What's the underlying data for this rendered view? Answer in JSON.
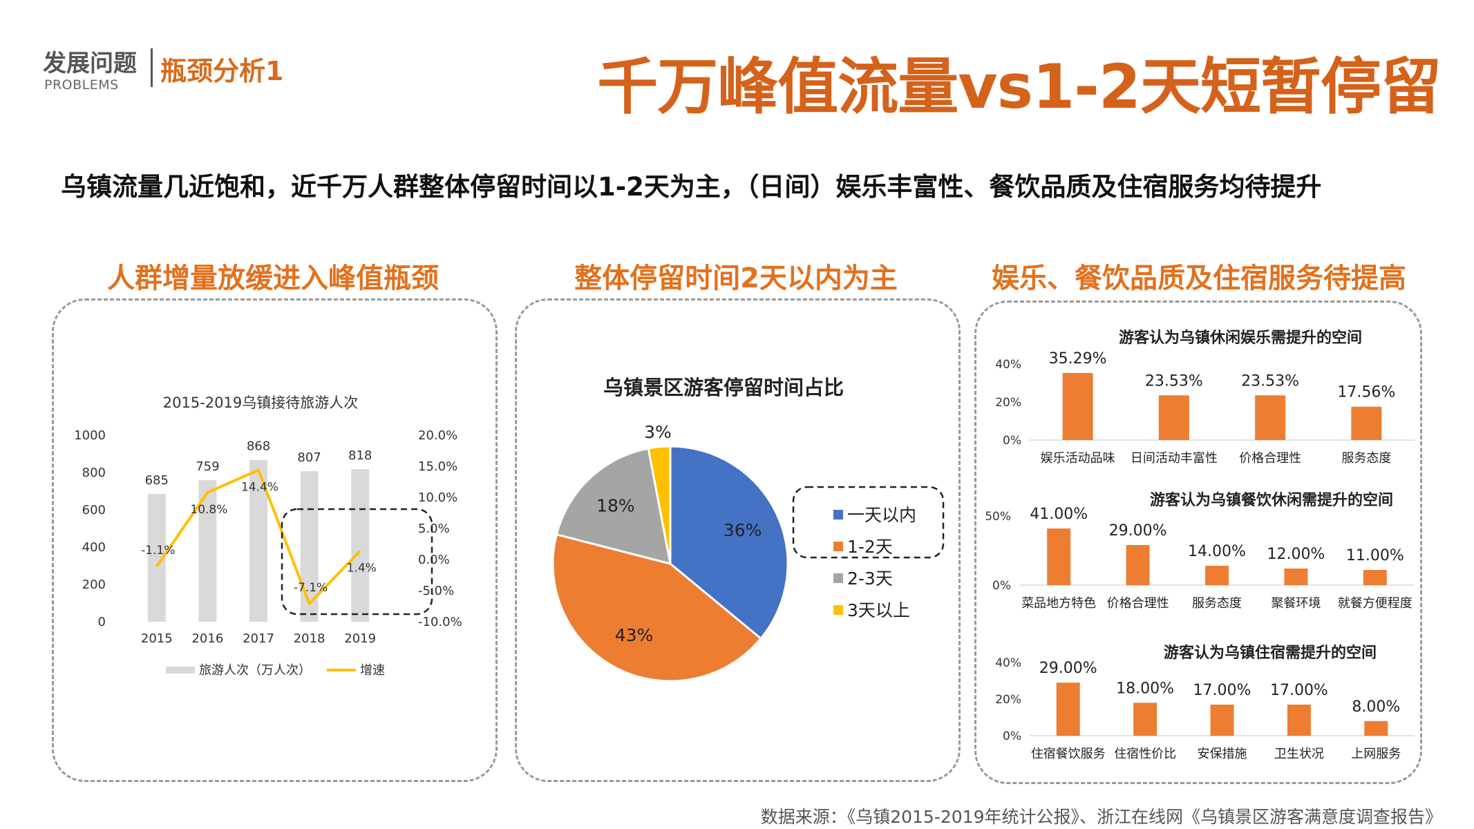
{
  "header": {
    "brand": "发展问题",
    "brand_en": "PROBLEMS",
    "section": "瓶颈分析1",
    "title": "千万峰值流量vs1-2天短暂停留"
  },
  "headline": "乌镇流量几近饱和，近千万人群整体停留时间以1-2天为主，（日间）娱乐丰富性、餐饮品质及住宿服务均待提升",
  "sections": [
    {
      "title": "人群增量放缓进入峰值瓶颈"
    },
    {
      "title": "整体停留时间2天以内为主"
    },
    {
      "title": "娱乐、餐饮品质及住宿服务待提高"
    }
  ],
  "source": "数据来源：《乌镇2015-2019年统计公报》、浙江在线网《乌镇景区游客满意度调查报告》",
  "colors": {
    "accent": "#E2711D",
    "bar_orange": "#ED7D31",
    "bar_grey": "#D9D9D9",
    "line_yellow": "#FFC000",
    "blue": "#4472C4",
    "grey": "#A5A5A5"
  },
  "chart_data": [
    {
      "type": "bar+line",
      "title": "2015-2019乌镇接待旅游人次",
      "categories": [
        "2015",
        "2016",
        "2017",
        "2018",
        "2019"
      ],
      "series": [
        {
          "name": "旅游人次（万人次）",
          "type": "bar",
          "values": [
            685,
            759,
            868,
            807,
            818
          ],
          "labels": [
            "685",
            "759",
            "868",
            "807",
            "818"
          ]
        },
        {
          "name": "增速",
          "type": "line",
          "axis": "right",
          "values": [
            -1.1,
            10.8,
            14.4,
            -7.1,
            1.4
          ],
          "labels": [
            "-1.1%",
            "10.8%",
            "14.4%",
            "-7.1%",
            "1.4%"
          ]
        }
      ],
      "y_ticks": [
        "0",
        "200",
        "400",
        "600",
        "800",
        "1000"
      ],
      "y_range": [
        0,
        1000
      ],
      "y2_ticks": [
        "-10.0%",
        "-5.0%",
        "0.0%",
        "5.0%",
        "10.0%",
        "15.0%",
        "20.0%"
      ],
      "y2_range": [
        -10,
        20
      ],
      "legend": "bottom"
    },
    {
      "type": "pie",
      "title": "乌镇景区游客停留时间占比",
      "categories": [
        "一天以内",
        "1-2天",
        "2-3天",
        "3天以上"
      ],
      "values": [
        36,
        43,
        18,
        3
      ],
      "labels": [
        "36%",
        "43%",
        "18%",
        "3%"
      ],
      "colors": [
        "#4472C4",
        "#ED7D31",
        "#A5A5A5",
        "#FFC000"
      ],
      "legend": "right"
    },
    {
      "type": "bar",
      "title": "游客认为乌镇休闲娱乐需提升的空间",
      "categories": [
        "娱乐活动品味",
        "日间活动丰富性",
        "价格合理性",
        "服务态度"
      ],
      "values": [
        35.29,
        23.53,
        23.53,
        17.56
      ],
      "labels": [
        "35.29%",
        "23.53%",
        "23.53%",
        "17.56%"
      ],
      "y_ticks": [
        "0%",
        "20%",
        "40%"
      ],
      "y_range": [
        0,
        40
      ]
    },
    {
      "type": "bar",
      "title": "游客认为乌镇餐饮休闲需提升的空间",
      "categories": [
        "菜品地方特色",
        "价格合理性",
        "服务态度",
        "聚餐环境",
        "就餐方便程度"
      ],
      "values": [
        41.0,
        29.0,
        14.0,
        12.0,
        11.0
      ],
      "labels": [
        "41.00%",
        "29.00%",
        "14.00%",
        "12.00%",
        "11.00%"
      ],
      "y_ticks": [
        "0%",
        "50%"
      ],
      "y_range": [
        0,
        50
      ]
    },
    {
      "type": "bar",
      "title": "游客认为乌镇住宿需提升的空间",
      "categories": [
        "住宿餐饮服务",
        "住宿性价比",
        "安保措施",
        "卫生状况",
        "上网服务"
      ],
      "values": [
        29.0,
        18.0,
        17.0,
        17.0,
        8.0
      ],
      "labels": [
        "29.00%",
        "18.00%",
        "17.00%",
        "17.00%",
        "8.00%"
      ],
      "y_ticks": [
        "0%",
        "20%",
        "40%"
      ],
      "y_range": [
        0,
        40
      ]
    }
  ]
}
